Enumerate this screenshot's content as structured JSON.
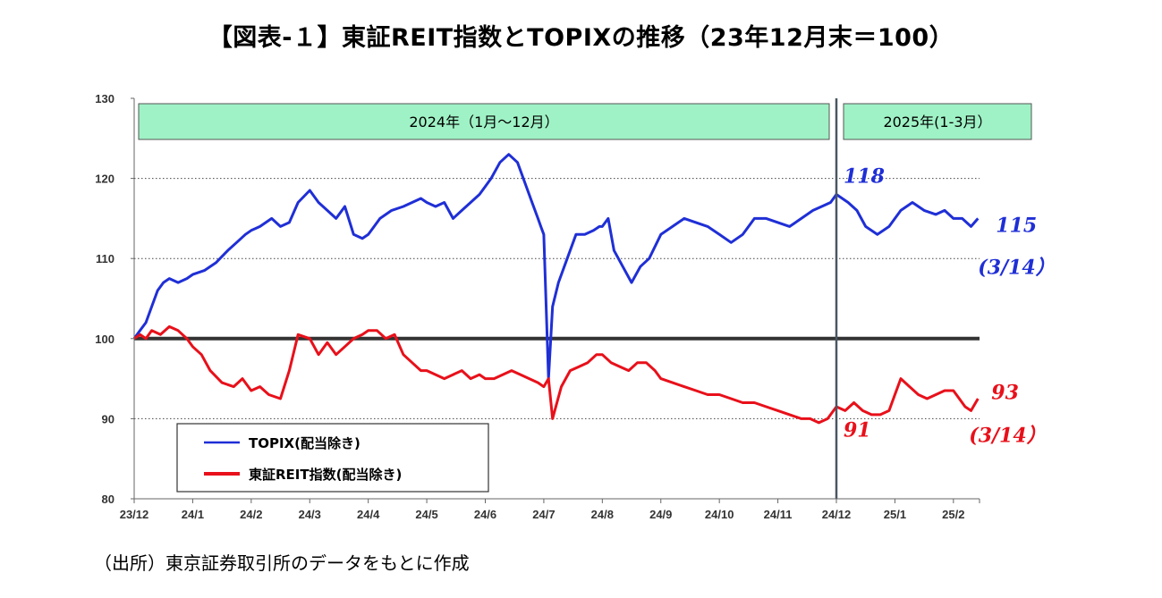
{
  "title": "【図表-１】東証REIT指数とTOPIXの推移（23年12月末＝100）",
  "source": "（出所）東京証券取引所のデータをもとに作成",
  "colors": {
    "topix": "#1f2fd6",
    "reit": "#e8101a",
    "base_line": "#333333",
    "divider": "#4a5663",
    "period_box": "#9ff2c5",
    "annotation_blue": "#1f2fd6",
    "annotation_red": "#e8101a"
  },
  "chart_data": {
    "type": "line",
    "title": "",
    "xlabel": "",
    "ylabel": "",
    "ylim": [
      80,
      130
    ],
    "yticks": [
      80,
      90,
      100,
      110,
      120,
      130
    ],
    "grid": "dotted horizontal at 90, 110, 120",
    "x_tick_labels": [
      "23/12",
      "24/1",
      "24/2",
      "24/3",
      "24/4",
      "24/5",
      "24/6",
      "24/7",
      "24/8",
      "24/9",
      "24/10",
      "24/11",
      "24/12",
      "25/1",
      "25/2"
    ],
    "reference_line": {
      "value": 100
    },
    "period_labels": [
      {
        "text": "2024年（1月～12月）"
      },
      {
        "text": "2025年(1-3月）"
      }
    ],
    "divider_at_tick": "24/12",
    "series": [
      {
        "name": "TOPIX(配当除き)",
        "key": "topix",
        "x": [
          0,
          0.1,
          0.2,
          0.3,
          0.4,
          0.5,
          0.6,
          0.75,
          0.9,
          1.0,
          1.2,
          1.4,
          1.6,
          1.75,
          1.9,
          2.0,
          2.15,
          2.35,
          2.5,
          2.65,
          2.8,
          3.0,
          3.15,
          3.3,
          3.45,
          3.6,
          3.75,
          3.9,
          4.0,
          4.2,
          4.4,
          4.6,
          4.75,
          4.9,
          5.0,
          5.15,
          5.3,
          5.45,
          5.6,
          5.75,
          5.9,
          6.0,
          6.1,
          6.25,
          6.4,
          6.55,
          6.7,
          6.8,
          6.9,
          6.95,
          7.0,
          7.08,
          7.15,
          7.25,
          7.4,
          7.55,
          7.7,
          7.85,
          7.95,
          8.0,
          8.1,
          8.2,
          8.35,
          8.5,
          8.65,
          8.8,
          9.0,
          9.2,
          9.4,
          9.6,
          9.8,
          10.0,
          10.2,
          10.4,
          10.6,
          10.8,
          11.0,
          11.2,
          11.4,
          11.6,
          11.75,
          11.9,
          12.0,
          12.2,
          12.35,
          12.5,
          12.7,
          12.9,
          13.1,
          13.3,
          13.5,
          13.7,
          13.85,
          14.0,
          14.15,
          14.3,
          14.42
        ],
        "values": [
          100,
          101,
          102,
          104,
          106,
          107,
          107.5,
          107,
          107.5,
          108,
          108.5,
          109.5,
          111,
          112,
          113,
          113.5,
          114,
          115,
          114,
          114.5,
          117,
          118.5,
          117,
          116,
          115,
          116.5,
          113,
          112.5,
          113,
          115,
          116,
          116.5,
          117,
          117.5,
          117,
          116.5,
          117,
          115,
          116,
          117,
          118,
          119,
          120,
          122,
          123,
          122,
          119,
          117,
          115,
          114,
          113,
          95,
          104,
          107,
          110,
          113,
          113,
          113.5,
          114,
          114,
          115,
          111,
          109,
          107,
          109,
          110,
          113,
          114,
          115,
          114.5,
          114,
          113,
          112,
          113,
          115,
          115,
          114.5,
          114,
          115,
          116,
          116.5,
          117,
          118,
          117,
          116,
          114,
          113,
          114,
          116,
          117,
          116,
          115.5,
          116,
          115,
          115,
          114,
          115
        ]
      },
      {
        "name": "東証REIT指数(配当除き)",
        "key": "reit",
        "x": [
          0,
          0.1,
          0.2,
          0.3,
          0.45,
          0.6,
          0.75,
          0.9,
          1.0,
          1.15,
          1.3,
          1.5,
          1.7,
          1.85,
          2.0,
          2.15,
          2.3,
          2.5,
          2.65,
          2.8,
          3.0,
          3.15,
          3.3,
          3.45,
          3.6,
          3.75,
          3.9,
          4.0,
          4.15,
          4.3,
          4.45,
          4.6,
          4.75,
          4.9,
          5.0,
          5.15,
          5.3,
          5.45,
          5.6,
          5.75,
          5.9,
          6.0,
          6.15,
          6.3,
          6.45,
          6.6,
          6.75,
          6.9,
          7.0,
          7.08,
          7.15,
          7.3,
          7.45,
          7.6,
          7.75,
          7.9,
          8.0,
          8.15,
          8.3,
          8.45,
          8.6,
          8.75,
          8.9,
          9.0,
          9.2,
          9.4,
          9.6,
          9.8,
          10.0,
          10.2,
          10.4,
          10.6,
          10.8,
          11.0,
          11.2,
          11.4,
          11.55,
          11.7,
          11.85,
          12.0,
          12.15,
          12.3,
          12.45,
          12.6,
          12.75,
          12.9,
          13.0,
          13.1,
          13.25,
          13.4,
          13.55,
          13.7,
          13.85,
          14.0,
          14.1,
          14.2,
          14.3,
          14.42
        ],
        "values": [
          100,
          100.5,
          100,
          101,
          100.5,
          101.5,
          101,
          100,
          99,
          98,
          96,
          94.5,
          94,
          95,
          93.5,
          94,
          93,
          92.5,
          96,
          100.5,
          100,
          98,
          99.5,
          98,
          99,
          100,
          100.5,
          101,
          101,
          100,
          100.5,
          98,
          97,
          96,
          96,
          95.5,
          95,
          95.5,
          96,
          95,
          95.5,
          95,
          95,
          95.5,
          96,
          95.5,
          95,
          94.5,
          94,
          95,
          90,
          94,
          96,
          96.5,
          97,
          98,
          98,
          97,
          96.5,
          96,
          97,
          97,
          96,
          95,
          94.5,
          94,
          93.5,
          93,
          93,
          92.5,
          92,
          92,
          91.5,
          91,
          90.5,
          90,
          90,
          89.5,
          90,
          91.5,
          91,
          92,
          91,
          90.5,
          90.5,
          91,
          93,
          95,
          94,
          93,
          92.5,
          93,
          93.5,
          93.5,
          92.5,
          91.5,
          91,
          92.5
        ]
      }
    ],
    "legend": {
      "placement": "bottom-left"
    },
    "annotations": [
      {
        "text": "118",
        "series": "topix",
        "at_x": 12.0,
        "value": 118
      },
      {
        "text": "115",
        "series": "topix",
        "at_x": 14.42,
        "value": 115
      },
      {
        "text": "(3/14）",
        "series": "topix",
        "at_x": 14.42,
        "value": 115
      },
      {
        "text": "91",
        "series": "reit",
        "at_x": 12.0,
        "value": 91
      },
      {
        "text": "93",
        "series": "reit",
        "at_x": 14.42,
        "value": 93
      },
      {
        "text": "(3/14）",
        "series": "reit",
        "at_x": 14.42,
        "value": 93
      }
    ]
  }
}
